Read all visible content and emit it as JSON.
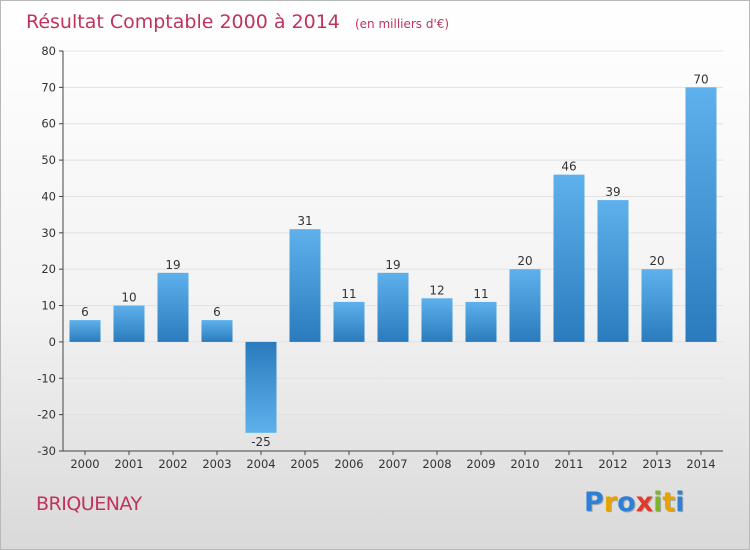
{
  "chart_data": {
    "type": "bar",
    "title": "Résultat Comptable 2000 à 2014",
    "unit_label": "(en milliers d'€)",
    "categories": [
      "2000",
      "2001",
      "2002",
      "2003",
      "2004",
      "2005",
      "2006",
      "2007",
      "2008",
      "2009",
      "2010",
      "2011",
      "2012",
      "2013",
      "2014"
    ],
    "values": [
      6,
      10,
      19,
      6,
      -25,
      31,
      11,
      19,
      12,
      11,
      20,
      46,
      39,
      20,
      70
    ],
    "yticks": [
      "80",
      "70",
      "60",
      "50",
      "40",
      "30",
      "20",
      "10",
      "0",
      "-10",
      "-20",
      "-30"
    ],
    "ylim": [
      -30,
      80
    ],
    "xlabel": "",
    "ylabel": "",
    "bar_color": "#3d8fd0"
  },
  "footer": {
    "town": "BRIQUENAY",
    "logo_letters": [
      "P",
      "r",
      "o",
      "x",
      "i",
      "t",
      "i"
    ],
    "logo_colors": [
      "#2e7fd6",
      "#e8a200",
      "#2e7fd6",
      "#e23a2a",
      "#7bb52a",
      "#e8a200",
      "#2e7fd6"
    ]
  }
}
